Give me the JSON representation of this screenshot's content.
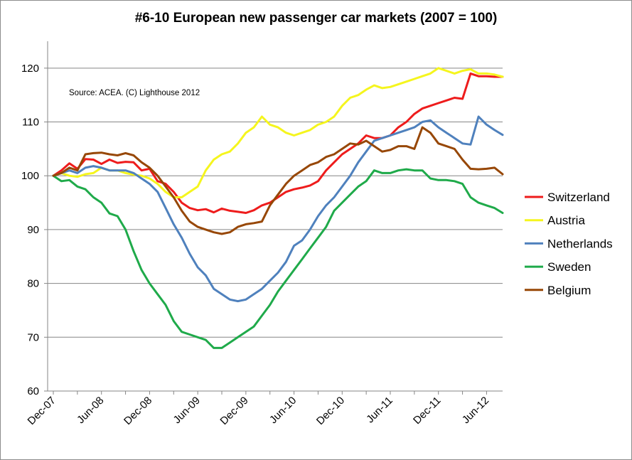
{
  "chart_data": {
    "type": "line",
    "title": "#6-10 European new passenger car markets (2007 = 100)",
    "annotation": "Source: ACEA. (C)  Lighthouse 2012",
    "ylim": [
      60,
      125
    ],
    "yticks": [
      60,
      70,
      80,
      90,
      100,
      110,
      120
    ],
    "x_tick_labels": [
      "Dec-07",
      "Jun-08",
      "Dec-08",
      "Jun-09",
      "Dec-09",
      "Jun-10",
      "Dec-10",
      "Jun-11",
      "Dec-11",
      "Jun-12"
    ],
    "x": [
      "Dec-07",
      "Jan-08",
      "Feb-08",
      "Mar-08",
      "Apr-08",
      "May-08",
      "Jun-08",
      "Jul-08",
      "Aug-08",
      "Sep-08",
      "Oct-08",
      "Nov-08",
      "Dec-08",
      "Jan-09",
      "Feb-09",
      "Mar-09",
      "Apr-09",
      "May-09",
      "Jun-09",
      "Jul-09",
      "Aug-09",
      "Sep-09",
      "Oct-09",
      "Nov-09",
      "Dec-09",
      "Jan-10",
      "Feb-10",
      "Mar-10",
      "Apr-10",
      "May-10",
      "Jun-10",
      "Jul-10",
      "Aug-10",
      "Sep-10",
      "Oct-10",
      "Nov-10",
      "Dec-10",
      "Jan-11",
      "Feb-11",
      "Mar-11",
      "Apr-11",
      "May-11",
      "Jun-11",
      "Jul-11",
      "Aug-11",
      "Sep-11",
      "Oct-11",
      "Nov-11",
      "Dec-11",
      "Jan-12",
      "Feb-12",
      "Mar-12",
      "Apr-12",
      "May-12",
      "Jun-12",
      "Jul-12",
      "Aug-12"
    ],
    "grid": true,
    "legend_position": "right",
    "series": [
      {
        "name": "Switzerland",
        "color": "#ee1c1c",
        "values": [
          100,
          101,
          102.3,
          101.3,
          103.1,
          103,
          102.2,
          103,
          102.4,
          102.6,
          102.5,
          101,
          101.3,
          99,
          98.5,
          97,
          95,
          94,
          93.6,
          93.8,
          93.2,
          93.9,
          93.5,
          93.3,
          93.1,
          93.6,
          94.5,
          95,
          96,
          97,
          97.5,
          97.8,
          98.2,
          99,
          101,
          102.5,
          104,
          105,
          106,
          107.5,
          107,
          107,
          107.5,
          109,
          110,
          111.5,
          112.5,
          113,
          113.5,
          114,
          114.5,
          114.3,
          119,
          118.5,
          118.5,
          118.4,
          118.4
        ]
      },
      {
        "name": "Austria",
        "color": "#f5f51e",
        "values": [
          100,
          100.5,
          100,
          99.8,
          100.3,
          100.5,
          101.5,
          101,
          101,
          100.5,
          100.2,
          100,
          99.5,
          98.5,
          97,
          96,
          96,
          97,
          98,
          101,
          103,
          104,
          104.5,
          106,
          108,
          109,
          111,
          109.5,
          109,
          108,
          107.5,
          108,
          108.5,
          109.5,
          110,
          111,
          113,
          114.5,
          115,
          116,
          116.8,
          116.3,
          116.5,
          117,
          117.5,
          118,
          118.5,
          119,
          120,
          119.5,
          119,
          119.5,
          119.8,
          119,
          119,
          118.8,
          118.4
        ]
      },
      {
        "name": "Netherlands",
        "color": "#4f81bd",
        "values": [
          100,
          100.5,
          101,
          100.5,
          101.5,
          101.8,
          101.5,
          101,
          101,
          101,
          100.5,
          99.5,
          98.5,
          97,
          94,
          91,
          88.5,
          85.5,
          83,
          81.5,
          79,
          78,
          77,
          76.7,
          77,
          78,
          79,
          80.5,
          82,
          84,
          87,
          88,
          90,
          92.5,
          94.5,
          96,
          98,
          100,
          102.5,
          104.5,
          106.5,
          107,
          107.5,
          108,
          108.5,
          109,
          110,
          110.3,
          109,
          108,
          107,
          106,
          105.8,
          111,
          109.5,
          108.5,
          107.6
        ]
      },
      {
        "name": "Sweden",
        "color": "#1faa4a",
        "values": [
          100,
          99,
          99.2,
          98,
          97.5,
          96,
          95,
          93,
          92.5,
          90,
          86,
          82.5,
          80,
          78,
          76,
          73,
          71,
          70.5,
          70,
          69.5,
          68,
          68,
          69,
          70,
          71,
          72,
          74,
          76,
          78.5,
          80.5,
          82.5,
          84.5,
          86.5,
          88.5,
          90.5,
          93.5,
          95,
          96.5,
          98,
          99,
          101,
          100.5,
          100.5,
          101,
          101.2,
          101,
          101,
          99.5,
          99.2,
          99.2,
          99,
          98.5,
          96,
          95,
          94.5,
          94,
          93.1
        ]
      },
      {
        "name": "Belgium",
        "color": "#974706",
        "values": [
          100,
          100.5,
          101.5,
          101,
          104,
          104.2,
          104.3,
          104,
          103.8,
          104.2,
          103.8,
          102.5,
          101.5,
          100,
          98,
          96,
          93.5,
          91.5,
          90.5,
          90,
          89.5,
          89.2,
          89.5,
          90.5,
          91,
          91.2,
          91.5,
          94.5,
          96.5,
          98.5,
          100,
          101,
          102,
          102.5,
          103.5,
          104,
          105,
          106,
          105.8,
          106.5,
          105.5,
          104.5,
          104.8,
          105.5,
          105.5,
          105,
          109,
          108,
          106,
          105.5,
          105,
          103,
          101.3,
          101.2,
          101.3,
          101.5,
          100.3
        ]
      }
    ]
  }
}
